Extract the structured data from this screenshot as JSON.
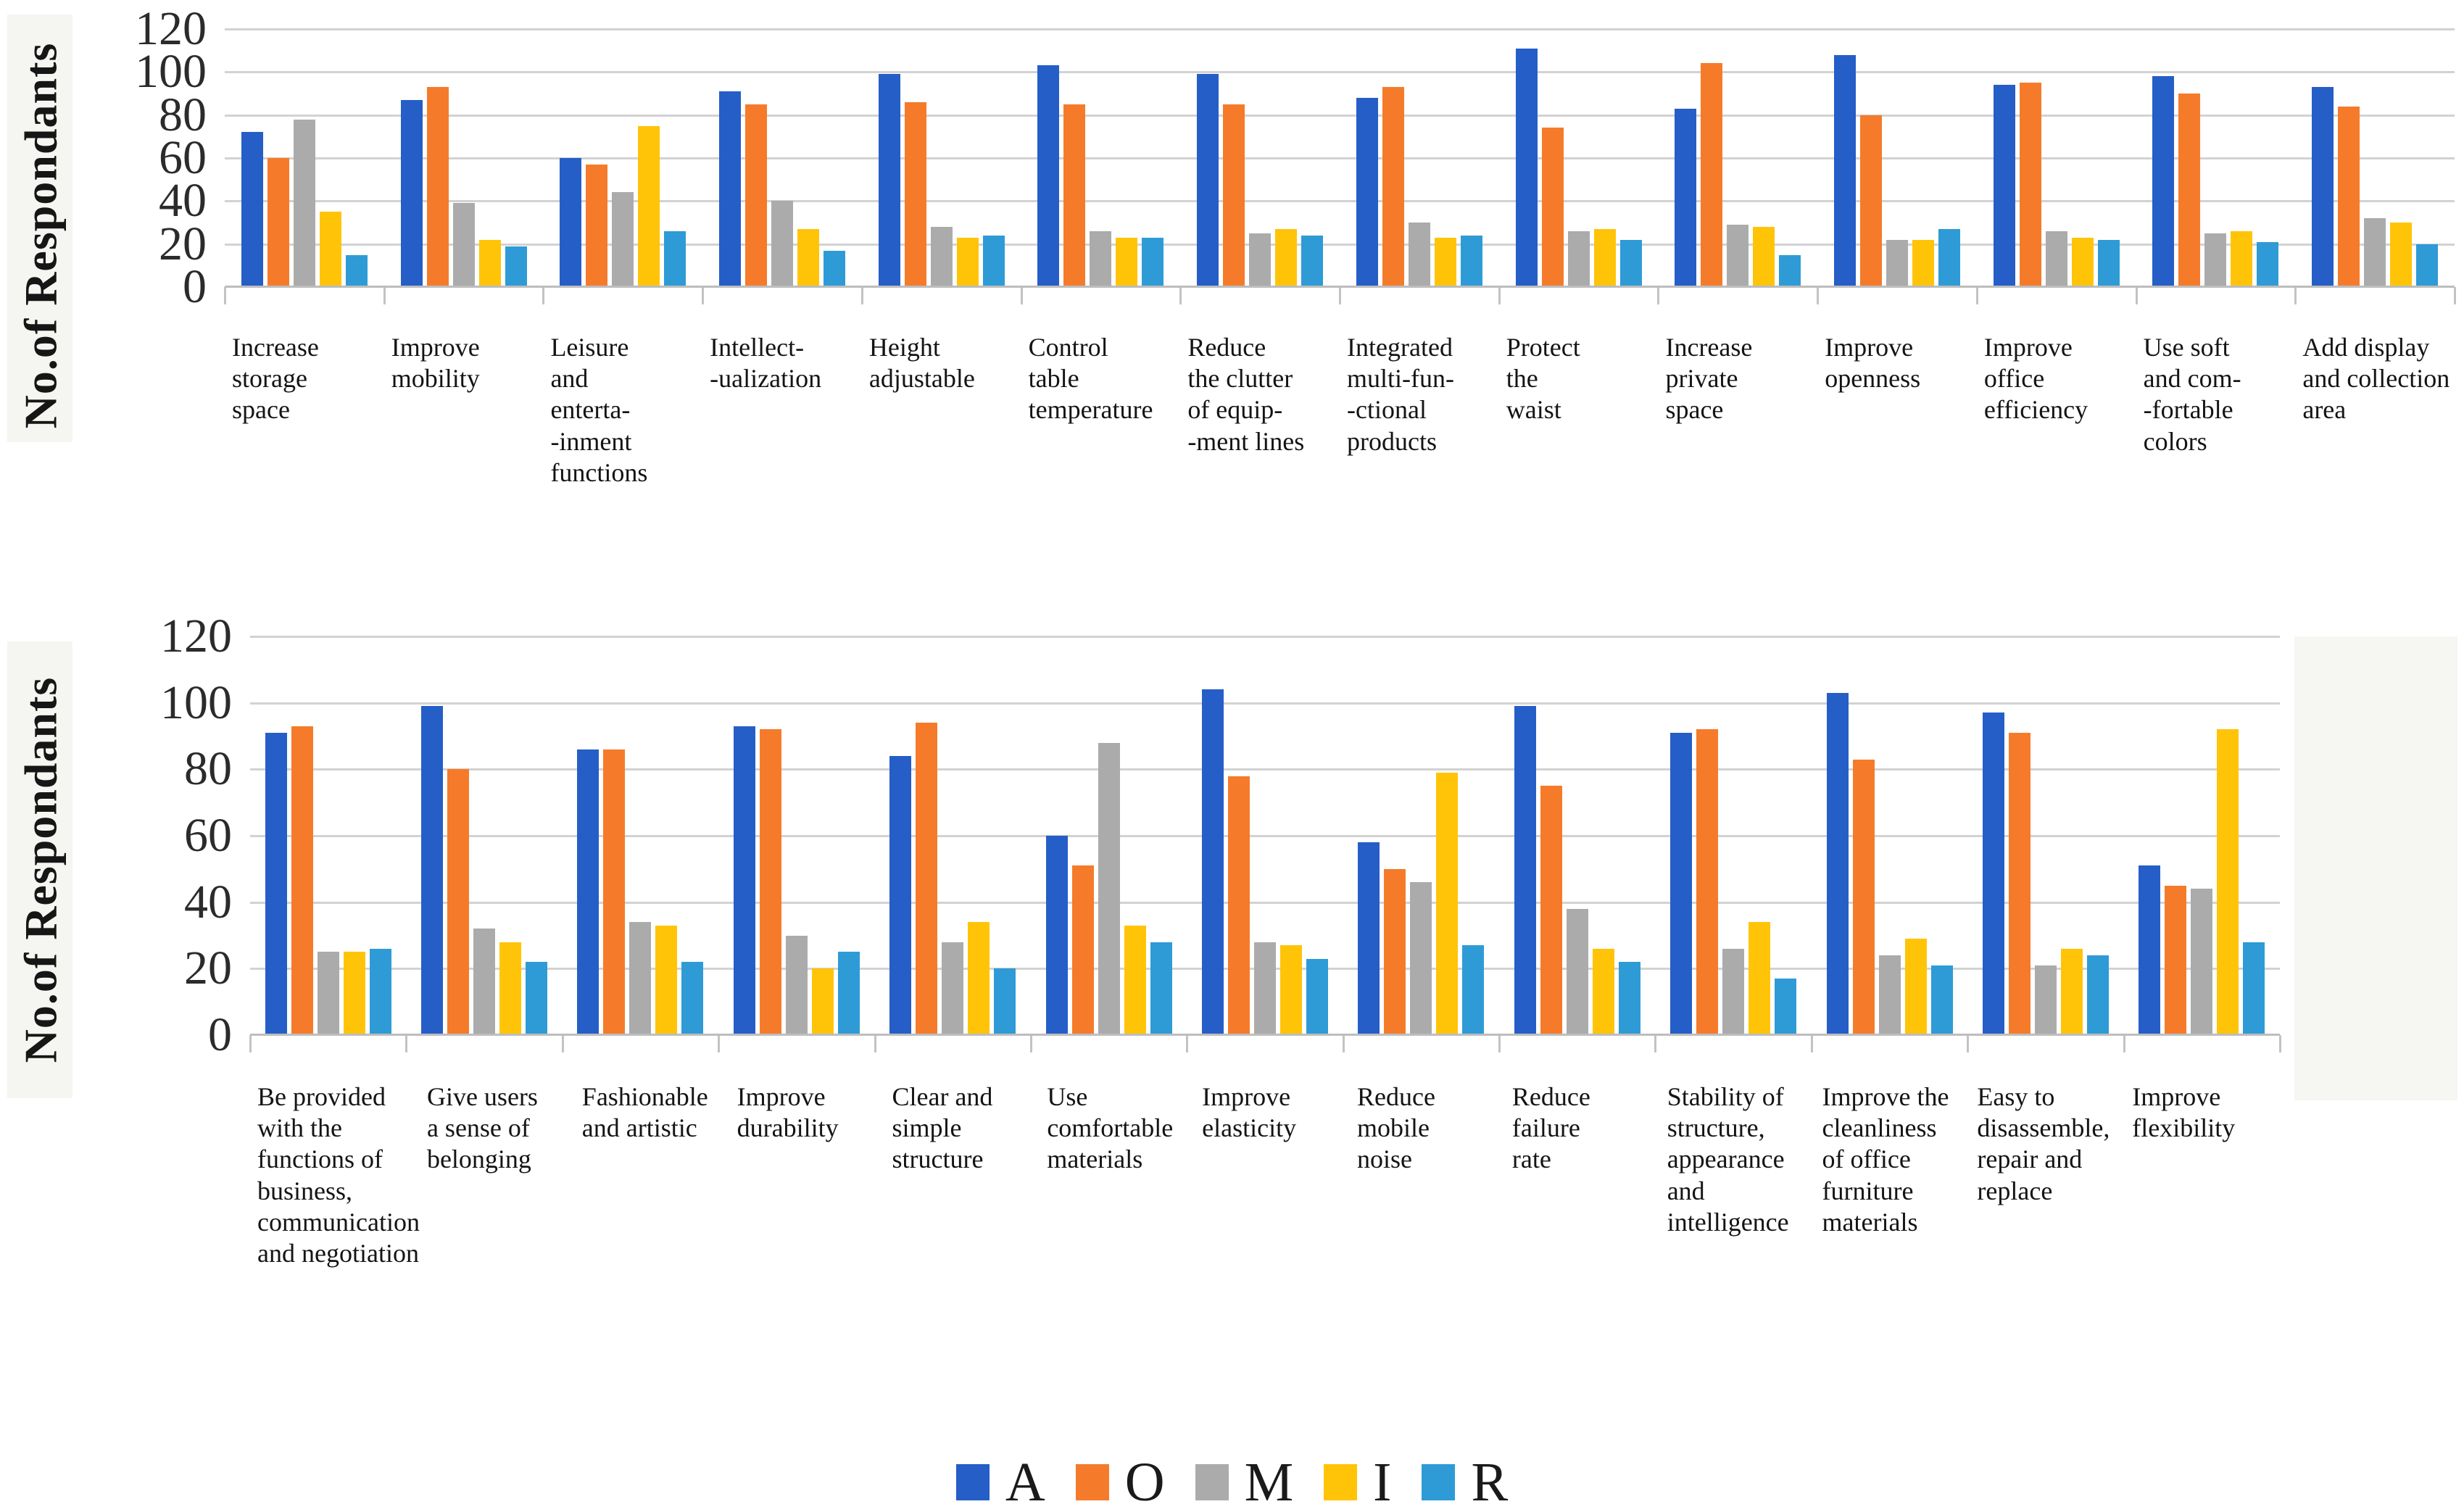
{
  "figure": {
    "background": "#ffffff",
    "gridline_color": "#d2d2d2",
    "axis_color": "#bdbdbd"
  },
  "legend": {
    "position": "bottom-center",
    "items": [
      {
        "label": "A",
        "color": "#255EC7"
      },
      {
        "label": "O",
        "color": "#F57B2A"
      },
      {
        "label": "M",
        "color": "#ABABAB"
      },
      {
        "label": "I",
        "color": "#FFC408"
      },
      {
        "label": "R",
        "color": "#2E9BD6"
      }
    ]
  },
  "chart_data": [
    {
      "type": "bar",
      "title": "",
      "xlabel": "",
      "ylabel": "No.of Respondants",
      "ylim": [
        0,
        120
      ],
      "yticks": [
        0,
        20,
        40,
        60,
        80,
        100,
        120
      ],
      "grid": true,
      "legend_position": "shared-bottom",
      "categories": [
        "Increase\nstorage\nspace",
        "Improve\nmobility",
        "Leisure\nand\nenterta-\n-inment\nfunctions",
        "Intellect-\n-ualization",
        "Height\nadjustable",
        "Control\ntable\ntemperature",
        "Reduce\nthe clutter\nof equip-\n-ment lines",
        "Integrated\nmulti-fun-\n-ctional\nproducts",
        "Protect\nthe\nwaist",
        "Increase\nprivate\nspace",
        "Improve\nopenness",
        "Improve\noffice\nefficiency",
        "Use soft\nand com-\n-fortable\ncolors",
        "Add display\nand collection\narea"
      ],
      "series": [
        {
          "name": "A",
          "color": "#255EC7",
          "values": [
            72,
            87,
            60,
            91,
            99,
            103,
            99,
            88,
            111,
            83,
            108,
            94,
            98,
            93
          ]
        },
        {
          "name": "O",
          "color": "#F57B2A",
          "values": [
            60,
            93,
            57,
            85,
            86,
            85,
            85,
            93,
            74,
            104,
            80,
            95,
            90,
            84
          ]
        },
        {
          "name": "M",
          "color": "#ABABAB",
          "values": [
            78,
            39,
            44,
            40,
            28,
            26,
            25,
            30,
            26,
            29,
            22,
            26,
            25,
            32
          ]
        },
        {
          "name": "I",
          "color": "#FFC408",
          "values": [
            35,
            22,
            75,
            27,
            23,
            23,
            27,
            23,
            27,
            28,
            22,
            23,
            26,
            30
          ]
        },
        {
          "name": "R",
          "color": "#2E9BD6",
          "values": [
            15,
            19,
            26,
            17,
            24,
            23,
            24,
            24,
            22,
            15,
            27,
            22,
            21,
            20
          ]
        }
      ]
    },
    {
      "type": "bar",
      "title": "",
      "xlabel": "",
      "ylabel": "No.of Respondants",
      "ylim": [
        0,
        120
      ],
      "yticks": [
        0,
        20,
        40,
        60,
        80,
        100,
        120
      ],
      "grid": true,
      "legend_position": "shared-bottom",
      "categories": [
        "Be provided\nwith the\nfunctions of\nbusiness,\ncommunication\n and negotiation",
        "Give users\na sense of\nbelonging",
        "Fashionable\nand artistic",
        "Improve\ndurability",
        "Clear and\nsimple\nstructure",
        "Use\ncomfortable\nmaterials",
        "Improve\nelasticity",
        "Reduce\nmobile\nnoise",
        "Reduce\nfailure\nrate",
        "Stability of\nstructure,\nappearance\nand\nintelligence",
        "Improve the\ncleanliness\nof office\nfurniture\nmaterials",
        "Easy to\ndisassemble,\nrepair and\nreplace",
        "Improve\nflexibility"
      ],
      "series": [
        {
          "name": "A",
          "color": "#255EC7",
          "values": [
            91,
            99,
            86,
            93,
            84,
            60,
            104,
            58,
            99,
            91,
            103,
            97,
            51
          ]
        },
        {
          "name": "O",
          "color": "#F57B2A",
          "values": [
            93,
            80,
            86,
            92,
            94,
            51,
            78,
            50,
            75,
            92,
            83,
            91,
            45
          ]
        },
        {
          "name": "M",
          "color": "#ABABAB",
          "values": [
            25,
            32,
            34,
            30,
            28,
            88,
            28,
            46,
            38,
            26,
            24,
            21,
            44
          ]
        },
        {
          "name": "I",
          "color": "#FFC408",
          "values": [
            25,
            28,
            33,
            20,
            34,
            33,
            27,
            79,
            26,
            34,
            29,
            26,
            92
          ]
        },
        {
          "name": "R",
          "color": "#2E9BD6",
          "values": [
            26,
            22,
            22,
            25,
            20,
            28,
            23,
            27,
            22,
            17,
            21,
            24,
            28
          ]
        }
      ]
    }
  ]
}
